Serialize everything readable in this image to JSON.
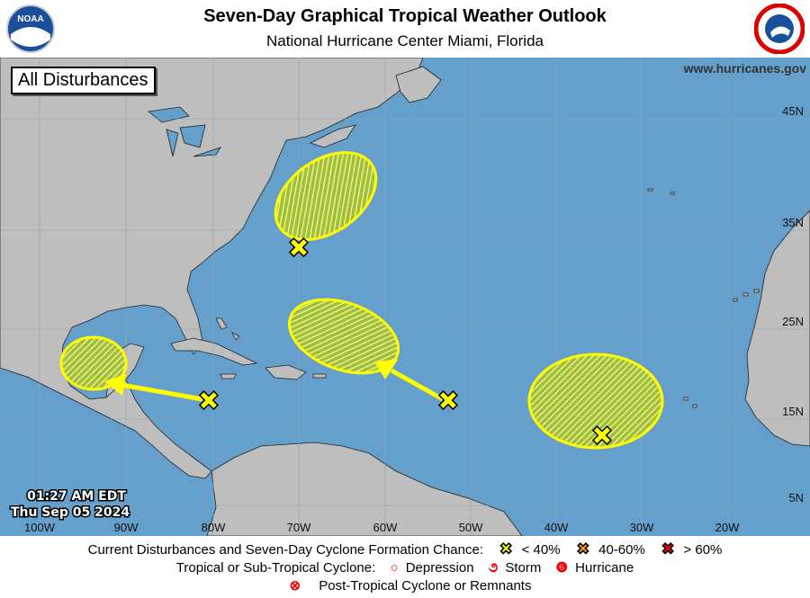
{
  "header": {
    "title": "Seven-Day Graphical Tropical Weather Outlook",
    "subtitle": "National Hurricane Center  Miami, Florida",
    "left_logo": "NOAA",
    "right_logo": "NATIONAL WEATHER SERVICE"
  },
  "map": {
    "panel_label": "All Disturbances",
    "website": "www.hurricanes.gov",
    "timestamp_time": "01:27 AM EDT",
    "timestamp_date": "Thu Sep 05 2024",
    "lon_labels": [
      "100W",
      "90W",
      "80W",
      "70W",
      "60W",
      "50W",
      "40W",
      "30W",
      "20W"
    ],
    "lat_labels": [
      "45N",
      "35N",
      "25N",
      "15N",
      "5N"
    ],
    "colors": {
      "ocean": "#64a0cb",
      "land": "#bebebe",
      "area_low": "#ffff00",
      "arrow": "#ffff00"
    },
    "disturbances": [
      {
        "chance": "< 40%",
        "track": "none",
        "area": "off US east coast"
      },
      {
        "chance": "< 40%",
        "track": "west-northwest",
        "area": "Bay of Campeche"
      },
      {
        "chance": "< 40%",
        "track": "west-northwest",
        "area": "north of Leeward Islands"
      },
      {
        "chance": "< 40%",
        "track": "none",
        "area": "eastern Atlantic"
      }
    ]
  },
  "legend": {
    "row1_label": "Current Disturbances and Seven-Day Cyclone Formation Chance:",
    "low": "< 40%",
    "medium": "40-60%",
    "high": "> 60%",
    "low_color": "#ffff00",
    "medium_color": "#ff9900",
    "high_color": "#ff0000",
    "row2_label": "Tropical or Sub-Tropical Cyclone:",
    "depression": "Depression",
    "storm": "Storm",
    "hurricane": "Hurricane",
    "post_tropical": "Post-Tropical Cyclone or Remnants"
  }
}
